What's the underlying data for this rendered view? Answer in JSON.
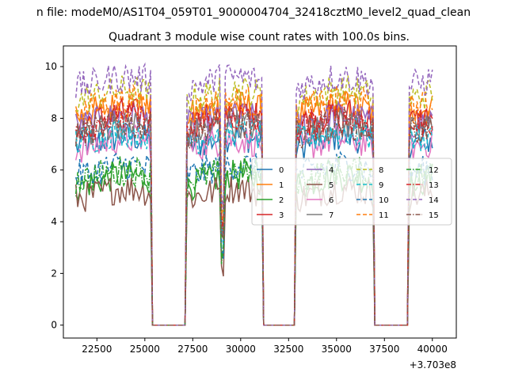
{
  "suptitle": "n file: modeM0/AS1T04_059T01_9000004704_32418cztM0_level2_quad_clean",
  "chart_data": {
    "type": "line",
    "title": "Quadrant 3 module wise count rates with 100.0s bins.",
    "xlabel": "",
    "ylabel": "",
    "x_offset_label": "+3.703e8",
    "xlim": [
      20750,
      41250
    ],
    "ylim": [
      -0.5,
      10.8
    ],
    "xticks": [
      22500,
      25000,
      27500,
      30000,
      32500,
      35000,
      37500,
      40000
    ],
    "xtick_labels": [
      "22500",
      "25000",
      "27500",
      "30000",
      "32500",
      "35000",
      "37500",
      "40000"
    ],
    "yticks": [
      0,
      2,
      4,
      6,
      8,
      10
    ],
    "ytick_labels": [
      "0",
      "2",
      "4",
      "6",
      "8",
      "10"
    ],
    "grid": false,
    "legend_position": "center-right",
    "data_window": {
      "t_start": 21400,
      "t_end": 40000
    },
    "good_intervals": [
      [
        21400,
        25300
      ],
      [
        27200,
        31100
      ],
      [
        32900,
        36900
      ],
      [
        38800,
        40000
      ]
    ],
    "dip_time": 29050,
    "series": [
      {
        "name": "0",
        "color": "#1f77b4",
        "dash": "solid",
        "level": 7.1
      },
      {
        "name": "1",
        "color": "#ff7f0e",
        "dash": "solid",
        "level": 8.3
      },
      {
        "name": "2",
        "color": "#2ca02c",
        "dash": "solid",
        "level": 5.6
      },
      {
        "name": "3",
        "color": "#d62728",
        "dash": "solid",
        "level": 8.0
      },
      {
        "name": "4",
        "color": "#9467bd",
        "dash": "solid",
        "level": 7.9
      },
      {
        "name": "5",
        "color": "#8c564b",
        "dash": "solid",
        "level": 5.1
      },
      {
        "name": "6",
        "color": "#e377c2",
        "dash": "solid",
        "level": 7.0
      },
      {
        "name": "7",
        "color": "#7f7f7f",
        "dash": "solid",
        "level": 7.6
      },
      {
        "name": "8",
        "color": "#bcbd22",
        "dash": "dashed",
        "level": 8.9
      },
      {
        "name": "9",
        "color": "#17becf",
        "dash": "dashed",
        "level": 7.3
      },
      {
        "name": "10",
        "color": "#1f77b4",
        "dash": "dashed",
        "level": 6.0
      },
      {
        "name": "11",
        "color": "#ff7f0e",
        "dash": "dashed",
        "level": 8.5
      },
      {
        "name": "12",
        "color": "#2ca02c",
        "dash": "dashdot",
        "level": 5.8
      },
      {
        "name": "13",
        "color": "#d62728",
        "dash": "dashdot",
        "level": 7.8
      },
      {
        "name": "14",
        "color": "#9467bd",
        "dash": "dashed",
        "level": 9.4
      },
      {
        "name": "15",
        "color": "#8c564b",
        "dash": "dashdot",
        "level": 7.6
      }
    ]
  }
}
